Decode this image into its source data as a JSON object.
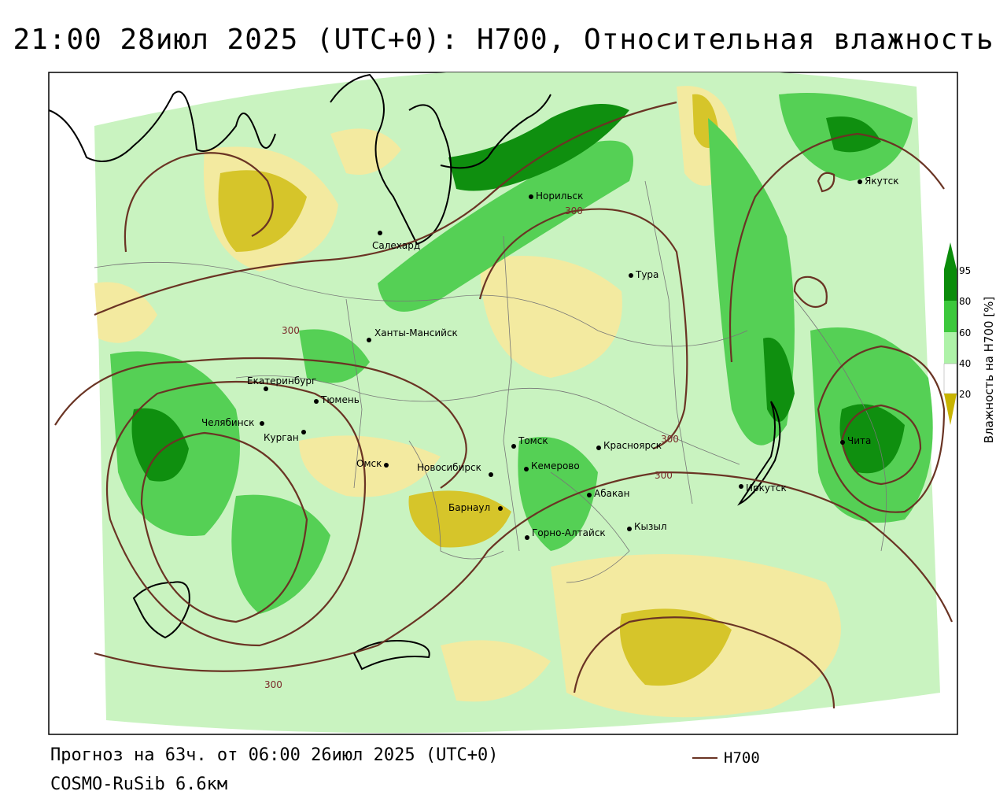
{
  "title": "21:00 28июл 2025 (UTC+0): H700, Относительная влажность",
  "forecast_text": "Прогноз на 63ч. от 06:00 26июл 2025 (UTC+0)",
  "model_text": "COSMO-RuSib 6.6км",
  "legend_line_label": "H700",
  "colorbar": {
    "title": "Влажность на H700 [%]",
    "ticks": [
      "95",
      "80",
      "60",
      "40",
      "20"
    ],
    "colors": {
      "very_dry": "#c8b400",
      "dry": "#ece37c",
      "moist": "#aef2a8",
      "wet": "#3cc83c",
      "saturated": "#0a8c0a"
    }
  },
  "contour_labels": [
    "300",
    "300",
    "300",
    "300",
    "300"
  ],
  "cities": [
    {
      "name": "Норильск"
    },
    {
      "name": "Якутск"
    },
    {
      "name": "Салехард"
    },
    {
      "name": "Тура"
    },
    {
      "name": "Ханты-Мансийск"
    },
    {
      "name": "Екатеринбург"
    },
    {
      "name": "Тюмень"
    },
    {
      "name": "Челябинск"
    },
    {
      "name": "Курган"
    },
    {
      "name": "Омск"
    },
    {
      "name": "Новосибирск"
    },
    {
      "name": "Томск"
    },
    {
      "name": "Кемерово"
    },
    {
      "name": "Красноярск"
    },
    {
      "name": "Барнаул"
    },
    {
      "name": "Абакан"
    },
    {
      "name": "Горно-Алтайск"
    },
    {
      "name": "Кызыл"
    },
    {
      "name": "Иркутск"
    },
    {
      "name": "Чита"
    }
  ]
}
